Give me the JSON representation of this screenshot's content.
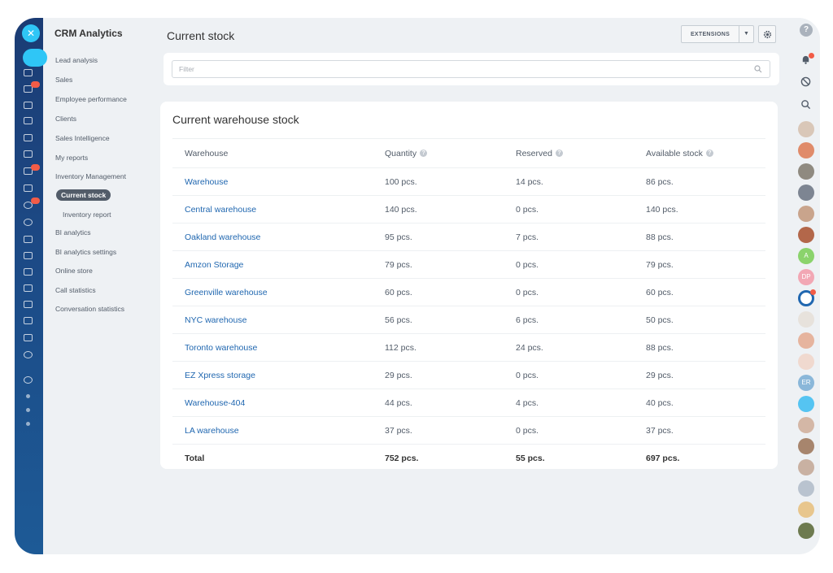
{
  "sidebar": {
    "brand": "CRM Analytics",
    "items": [
      {
        "label": "Lead analysis"
      },
      {
        "label": "Sales"
      },
      {
        "label": "Employee performance"
      },
      {
        "label": "Clients"
      },
      {
        "label": "Sales Intelligence"
      },
      {
        "label": "My reports"
      },
      {
        "label": "Inventory Management"
      },
      {
        "label": "Current stock"
      },
      {
        "label": "Inventory report"
      },
      {
        "label": "BI analytics"
      },
      {
        "label": "BI analytics settings"
      },
      {
        "label": "Online store"
      },
      {
        "label": "Call statistics"
      },
      {
        "label": "Conversation statistics"
      }
    ]
  },
  "header": {
    "title": "Current stock",
    "extensions_label": "EXTENSIONS"
  },
  "filter": {
    "placeholder": "Filter",
    "value": ""
  },
  "card": {
    "title": "Current warehouse stock",
    "columns": [
      "Warehouse",
      "Quantity",
      "Reserved",
      "Available stock"
    ],
    "rows": [
      {
        "warehouse": "Warehouse",
        "quantity": "100 pcs.",
        "reserved": "14 pcs.",
        "available": "86 pcs."
      },
      {
        "warehouse": "Central warehouse",
        "quantity": "140 pcs.",
        "reserved": "0 pcs.",
        "available": "140 pcs."
      },
      {
        "warehouse": "Oakland warehouse",
        "quantity": "95 pcs.",
        "reserved": "7 pcs.",
        "available": "88 pcs."
      },
      {
        "warehouse": "Amzon Storage",
        "quantity": "79 pcs.",
        "reserved": "0 pcs.",
        "available": "79 pcs."
      },
      {
        "warehouse": "Greenville warehouse",
        "quantity": "60 pcs.",
        "reserved": "0 pcs.",
        "available": "60 pcs."
      },
      {
        "warehouse": "NYC warehouse",
        "quantity": "56 pcs.",
        "reserved": "6 pcs.",
        "available": "50 pcs."
      },
      {
        "warehouse": "Toronto warehouse",
        "quantity": "112 pcs.",
        "reserved": "24 pcs.",
        "available": "88 pcs."
      },
      {
        "warehouse": "EZ Xpress storage",
        "quantity": "29 pcs.",
        "reserved": "0 pcs.",
        "available": "29 pcs."
      },
      {
        "warehouse": "Warehouse-404",
        "quantity": "44 pcs.",
        "reserved": "4 pcs.",
        "available": "40 pcs."
      },
      {
        "warehouse": "LA warehouse",
        "quantity": "37 pcs.",
        "reserved": "0 pcs.",
        "available": "37 pcs."
      }
    ],
    "total": {
      "label": "Total",
      "quantity": "752 pcs.",
      "reserved": "55 pcs.",
      "available": "697 pcs."
    }
  },
  "right_panel": {
    "avatar_labels": {
      "a": "A",
      "dp": "DP",
      "er": "ER"
    }
  },
  "colors": {
    "rail": "#1c4a86",
    "accent": "#2fc6f6",
    "link": "#2067b0",
    "badge": "#f25c47",
    "background": "#eef1f4"
  }
}
